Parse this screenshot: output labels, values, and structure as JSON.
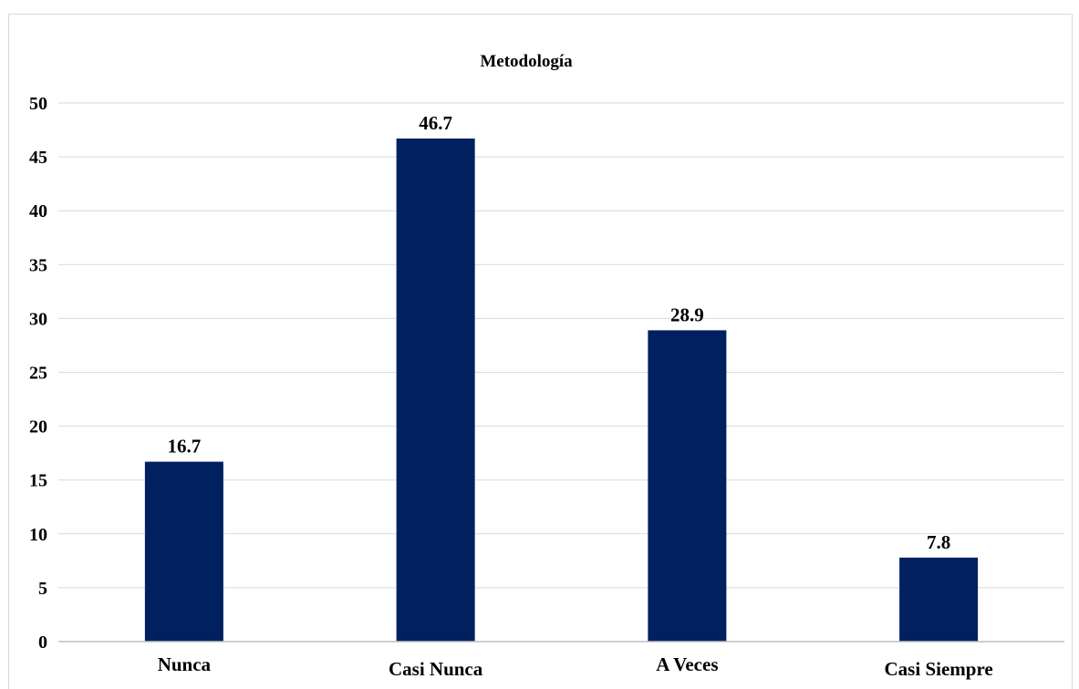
{
  "chart_data": {
    "type": "bar",
    "title": "Metodología",
    "xlabel": "",
    "ylabel": "",
    "categories": [
      "Nunca",
      "Casi Nunca",
      "A Veces",
      "Casi Siempre"
    ],
    "values": [
      16.7,
      46.7,
      28.9,
      7.8
    ],
    "data_labels": [
      "16.7",
      "46.7",
      "28.9",
      "7.8"
    ],
    "ylim": [
      0,
      50
    ],
    "yticks": [
      "0",
      "5",
      "10",
      "15",
      "20",
      "25",
      "30",
      "35",
      "40",
      "45",
      "50"
    ],
    "grid": true,
    "legend": "none",
    "bar_color": "#002060",
    "grid_color": "#d9d9d9",
    "axis_color": "#bfbfbf"
  }
}
